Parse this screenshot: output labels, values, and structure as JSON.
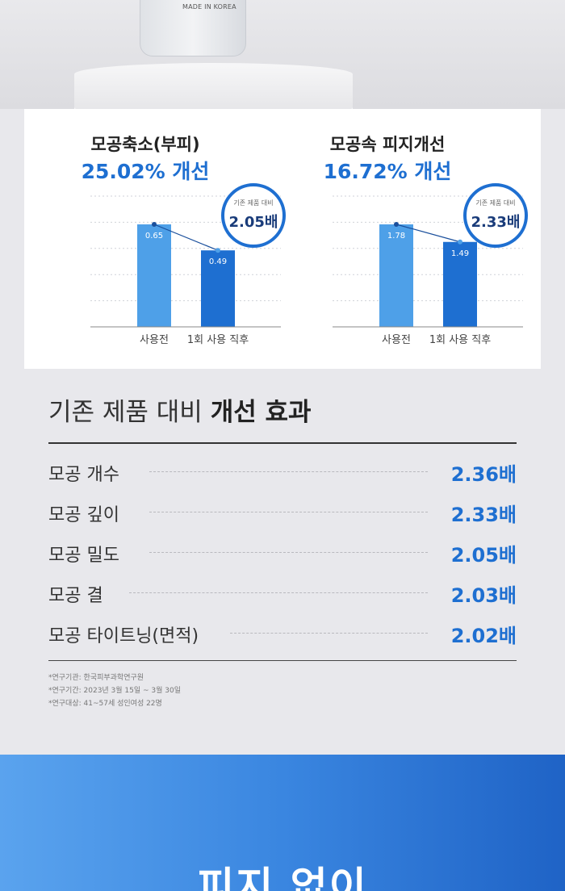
{
  "product": {
    "made_in": "MADE IN KOREA"
  },
  "chart_data": [
    {
      "type": "bar",
      "title": "모공축소(부피)",
      "subtitle": "25.02% 개선",
      "categories": [
        "사용전",
        "1회 사용 직후"
      ],
      "values": [
        0.65,
        0.49
      ],
      "value_labels": [
        "0.65",
        "0.49"
      ],
      "badge_label": "기존 제품 대비",
      "badge_value": "2.05배",
      "grid": true,
      "colors": [
        "#4ea0e8",
        "#1e6fd1"
      ]
    },
    {
      "type": "bar",
      "title": "모공속 피지개선",
      "subtitle": "16.72% 개선",
      "categories": [
        "사용전",
        "1회 사용 직후"
      ],
      "values": [
        1.78,
        1.49
      ],
      "value_labels": [
        "1.78",
        "1.49"
      ],
      "badge_label": "기존 제품 대비",
      "badge_value": "2.33배",
      "grid": true,
      "colors": [
        "#4ea0e8",
        "#1e6fd1"
      ]
    }
  ],
  "effects": {
    "title_prefix": "기존 제품 대비",
    "title_bold": "개선 효과",
    "rows": [
      {
        "label": "모공 개수",
        "value": "2.36배"
      },
      {
        "label": "모공 깊이",
        "value": "2.33배"
      },
      {
        "label": "모공 밀도",
        "value": "2.05배"
      },
      {
        "label": "모공 결",
        "value": "2.03배"
      },
      {
        "label": "모공 타이트닝(면적)",
        "value": "2.02배"
      }
    ],
    "notes": [
      "*연구기관: 한국피부과학연구원",
      "*연구기간: 2023년 3월 15일 ~ 3월 30일",
      "*연구대상: 41~57세 성인여성 22명"
    ]
  },
  "banner": {
    "text": "피지 없이"
  },
  "colors": {
    "accent": "#1e6fd1",
    "bar_before": "#4ea0e8",
    "bar_after": "#1e6fd1"
  }
}
